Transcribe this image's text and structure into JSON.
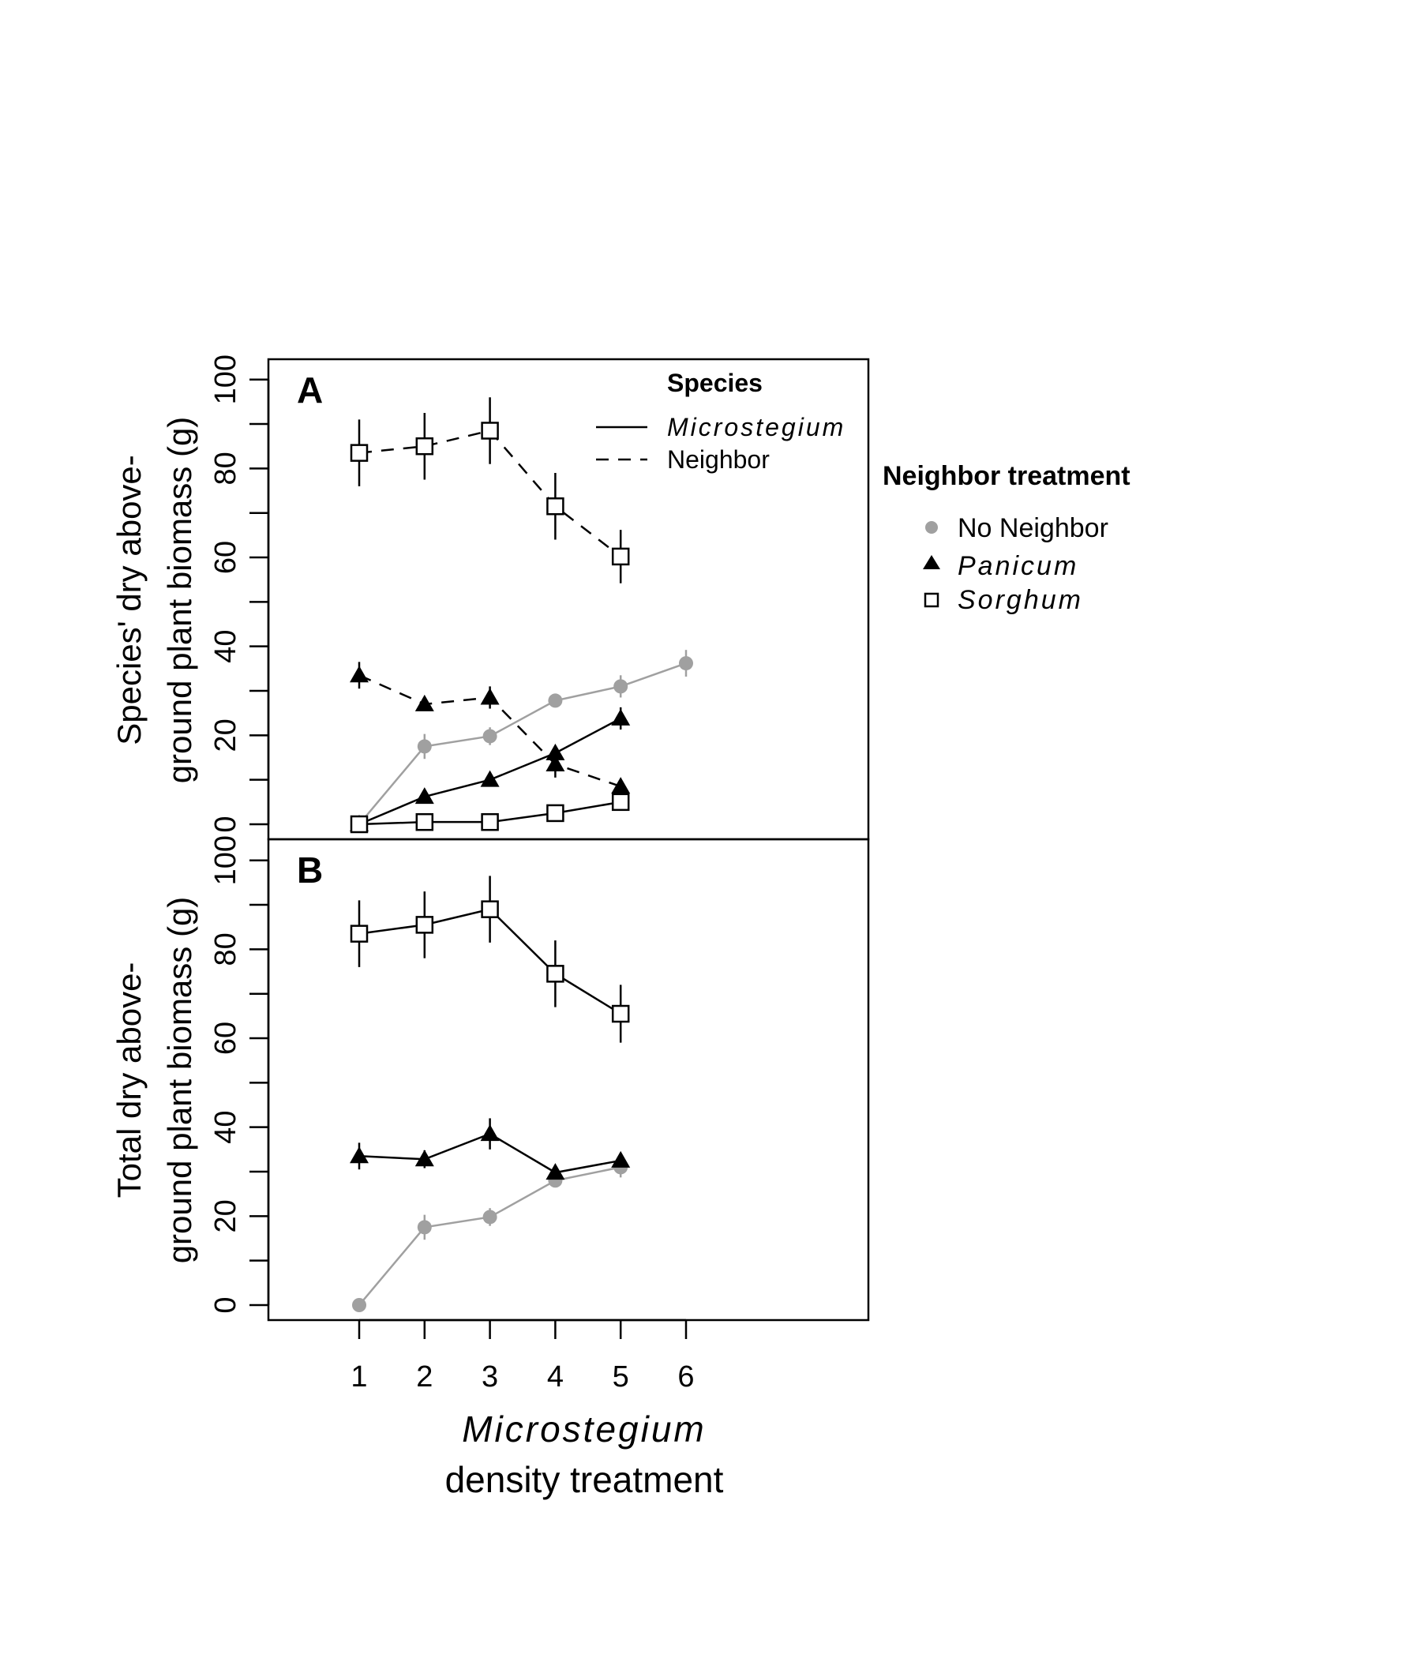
{
  "chart_data": {
    "type": "line",
    "x": [
      1,
      2,
      3,
      4,
      5,
      6
    ],
    "x_tick_labels": [
      "1",
      "2",
      "3",
      "4",
      "5",
      "6"
    ],
    "xlabel_line1": "Microstegium",
    "xlabel_line2": "density treatment",
    "species_legend": {
      "title": "Species",
      "microstegium": "Microstegium",
      "neighbor": "Neighbor"
    },
    "neighbor_legend": {
      "title": "Neighbor treatment",
      "no_neighbor": "No Neighbor",
      "panicum": "Panicum",
      "sorghum": "Sorghum"
    },
    "colors": {
      "no_neighbor": "#a0a0a0",
      "marks": "#000000"
    },
    "panels": [
      {
        "letter": "A",
        "ylabel_line1": "Species' dry above-",
        "ylabel_line2": "ground plant biomass (g)",
        "ylim": [
          0,
          100
        ],
        "y_tick_labels": [
          "100",
          "80",
          "60",
          "40",
          "20",
          "0"
        ],
        "series": [
          {
            "treatment": "no_neighbor",
            "species": "microstegium",
            "x": [
              1,
              2,
              3,
              4,
              5,
              6
            ],
            "y": [
              0,
              17.5,
              19.8,
              27.8,
              31,
              36.2
            ],
            "err": [
              0,
              2.8,
              2,
              1.3,
              2.5,
              3
            ]
          },
          {
            "treatment": "panicum",
            "species": "microstegium",
            "x": [
              1,
              2,
              3,
              4,
              5
            ],
            "y": [
              0,
              6.2,
              10,
              16,
              23.8
            ],
            "err": [
              0,
              1,
              1,
              1.2,
              2.5
            ]
          },
          {
            "treatment": "panicum",
            "species": "neighbor",
            "x": [
              1,
              2,
              3,
              4,
              5
            ],
            "y": [
              33.5,
              27,
              28.5,
              13.5,
              8.5
            ],
            "err": [
              3,
              1.2,
              2.5,
              3,
              1.5
            ]
          },
          {
            "treatment": "sorghum",
            "species": "microstegium",
            "x": [
              1,
              2,
              3,
              4,
              5
            ],
            "y": [
              0,
              0.5,
              0.5,
              2.5,
              5
            ],
            "err": [
              0,
              0.3,
              0.3,
              0.6,
              1
            ]
          },
          {
            "treatment": "sorghum",
            "species": "neighbor",
            "x": [
              1,
              2,
              3,
              4,
              5
            ],
            "y": [
              83.5,
              85,
              88.5,
              71.5,
              60.2
            ],
            "err": [
              7.5,
              7.5,
              7.5,
              7.5,
              6
            ]
          }
        ]
      },
      {
        "letter": "B",
        "ylabel_line1": "Total dry above-",
        "ylabel_line2": "ground plant biomass (g)",
        "ylim": [
          0,
          100
        ],
        "y_tick_labels": [
          "100",
          "80",
          "60",
          "40",
          "20",
          "0"
        ],
        "series": [
          {
            "treatment": "no_neighbor",
            "x": [
              1,
              2,
              3,
              4,
              5
            ],
            "y": [
              0,
              17.5,
              19.8,
              28,
              31
            ],
            "err": [
              0,
              2.8,
              2,
              1.3,
              2.3
            ]
          },
          {
            "treatment": "panicum",
            "x": [
              1,
              2,
              3,
              4,
              5
            ],
            "y": [
              33.5,
              32.8,
              38.5,
              29.8,
              32.5
            ],
            "err": [
              3,
              2,
              3.5,
              1.2,
              1
            ]
          },
          {
            "treatment": "sorghum",
            "x": [
              1,
              2,
              3,
              4,
              5
            ],
            "y": [
              83.5,
              85.5,
              89,
              74.5,
              65.5
            ],
            "err": [
              7.5,
              7.5,
              7.5,
              7.5,
              6.5
            ]
          }
        ]
      }
    ]
  }
}
